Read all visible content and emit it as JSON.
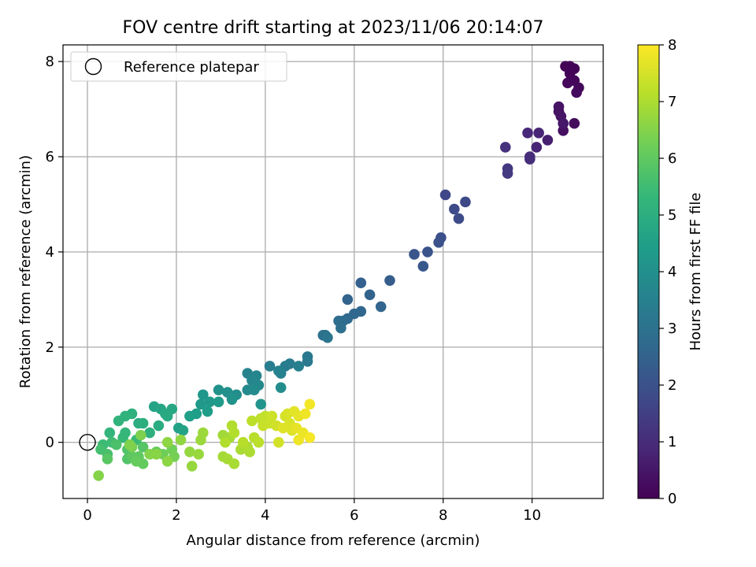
{
  "chart_data": {
    "type": "scatter",
    "title": "FOV centre drift starting at 2023/11/06 20:14:07",
    "xlabel": "Angular distance from reference (arcmin)",
    "ylabel": "Rotation from reference (arcmin)",
    "xlim": [
      -0.55,
      11.6
    ],
    "ylim": [
      -1.18,
      8.35
    ],
    "xticks": [
      0,
      2,
      4,
      6,
      8,
      10
    ],
    "yticks": [
      0,
      2,
      4,
      6,
      8
    ],
    "grid": true,
    "legend": {
      "placement": "top-left",
      "entries": [
        {
          "label": "Reference platepar",
          "marker": "open-circle"
        }
      ]
    },
    "reference_point": {
      "x": 0,
      "y": 0
    },
    "colorbar": {
      "label": "Hours from first FF file",
      "range": [
        0,
        8
      ],
      "ticks": [
        0,
        1,
        2,
        3,
        4,
        5,
        6,
        7,
        8
      ],
      "colormap": "viridis",
      "stops": [
        "#440154",
        "#482878",
        "#3e4a89",
        "#31688e",
        "#26828e",
        "#1f9e89",
        "#35b779",
        "#6ece58",
        "#b5de2b",
        "#fde725"
      ]
    },
    "points": [
      {
        "x": 10.75,
        "y": 7.9,
        "h": 0.0
      },
      {
        "x": 10.85,
        "y": 7.9,
        "h": 0.03
      },
      {
        "x": 10.95,
        "y": 7.85,
        "h": 0.06
      },
      {
        "x": 10.85,
        "y": 7.75,
        "h": 0.09
      },
      {
        "x": 10.95,
        "y": 7.6,
        "h": 0.12
      },
      {
        "x": 10.8,
        "y": 7.55,
        "h": 0.15
      },
      {
        "x": 11.05,
        "y": 7.45,
        "h": 0.18
      },
      {
        "x": 11.0,
        "y": 7.35,
        "h": 0.21
      },
      {
        "x": 10.95,
        "y": 6.7,
        "h": 0.24
      },
      {
        "x": 10.7,
        "y": 6.55,
        "h": 0.35
      },
      {
        "x": 10.6,
        "y": 6.95,
        "h": 0.4
      },
      {
        "x": 10.6,
        "y": 7.05,
        "h": 0.42
      },
      {
        "x": 10.65,
        "y": 6.85,
        "h": 0.45
      },
      {
        "x": 10.7,
        "y": 6.7,
        "h": 0.5
      },
      {
        "x": 10.35,
        "y": 6.35,
        "h": 0.7
      },
      {
        "x": 10.1,
        "y": 6.2,
        "h": 0.8
      },
      {
        "x": 10.15,
        "y": 6.5,
        "h": 0.85
      },
      {
        "x": 9.9,
        "y": 6.5,
        "h": 0.9
      },
      {
        "x": 9.95,
        "y": 6.0,
        "h": 1.0
      },
      {
        "x": 9.95,
        "y": 5.95,
        "h": 1.05
      },
      {
        "x": 9.4,
        "y": 6.2,
        "h": 1.15
      },
      {
        "x": 9.45,
        "y": 5.75,
        "h": 1.3
      },
      {
        "x": 9.45,
        "y": 5.65,
        "h": 1.35
      },
      {
        "x": 8.05,
        "y": 5.2,
        "h": 1.7
      },
      {
        "x": 8.5,
        "y": 5.05,
        "h": 1.75
      },
      {
        "x": 8.25,
        "y": 4.9,
        "h": 1.8
      },
      {
        "x": 8.35,
        "y": 4.7,
        "h": 1.85
      },
      {
        "x": 7.95,
        "y": 4.3,
        "h": 1.95
      },
      {
        "x": 7.9,
        "y": 4.2,
        "h": 2.0
      },
      {
        "x": 7.65,
        "y": 4.0,
        "h": 2.05
      },
      {
        "x": 7.35,
        "y": 3.95,
        "h": 2.1
      },
      {
        "x": 7.55,
        "y": 3.7,
        "h": 2.2
      },
      {
        "x": 6.8,
        "y": 3.4,
        "h": 2.35
      },
      {
        "x": 6.15,
        "y": 3.35,
        "h": 2.45
      },
      {
        "x": 6.35,
        "y": 3.1,
        "h": 2.5
      },
      {
        "x": 5.85,
        "y": 3.0,
        "h": 2.55
      },
      {
        "x": 6.6,
        "y": 2.85,
        "h": 2.6
      },
      {
        "x": 6.15,
        "y": 2.75,
        "h": 2.65
      },
      {
        "x": 6.0,
        "y": 2.7,
        "h": 2.7
      },
      {
        "x": 5.85,
        "y": 2.6,
        "h": 2.75
      },
      {
        "x": 5.75,
        "y": 2.55,
        "h": 2.8
      },
      {
        "x": 5.65,
        "y": 2.55,
        "h": 2.85
      },
      {
        "x": 5.7,
        "y": 2.4,
        "h": 2.9
      },
      {
        "x": 5.3,
        "y": 2.25,
        "h": 3.0
      },
      {
        "x": 5.35,
        "y": 2.25,
        "h": 3.05
      },
      {
        "x": 5.4,
        "y": 2.2,
        "h": 3.1
      },
      {
        "x": 4.95,
        "y": 1.8,
        "h": 3.2
      },
      {
        "x": 4.95,
        "y": 1.7,
        "h": 3.25
      },
      {
        "x": 4.55,
        "y": 1.65,
        "h": 3.3
      },
      {
        "x": 4.45,
        "y": 1.6,
        "h": 3.35
      },
      {
        "x": 4.1,
        "y": 1.6,
        "h": 3.4
      },
      {
        "x": 4.75,
        "y": 1.6,
        "h": 3.45
      },
      {
        "x": 4.35,
        "y": 1.45,
        "h": 3.5
      },
      {
        "x": 4.3,
        "y": 1.5,
        "h": 3.55
      },
      {
        "x": 3.6,
        "y": 1.45,
        "h": 3.6
      },
      {
        "x": 3.8,
        "y": 1.4,
        "h": 3.65
      },
      {
        "x": 3.7,
        "y": 1.3,
        "h": 3.7
      },
      {
        "x": 3.85,
        "y": 1.2,
        "h": 3.75
      },
      {
        "x": 3.6,
        "y": 1.1,
        "h": 3.8
      },
      {
        "x": 3.75,
        "y": 1.1,
        "h": 3.85
      },
      {
        "x": 4.35,
        "y": 1.15,
        "h": 3.9
      },
      {
        "x": 3.35,
        "y": 1.0,
        "h": 3.95
      },
      {
        "x": 3.15,
        "y": 1.05,
        "h": 4.0
      },
      {
        "x": 2.95,
        "y": 1.1,
        "h": 4.05
      },
      {
        "x": 3.25,
        "y": 0.9,
        "h": 4.1
      },
      {
        "x": 3.9,
        "y": 0.8,
        "h": 4.15
      },
      {
        "x": 2.6,
        "y": 1.0,
        "h": 4.2
      },
      {
        "x": 2.75,
        "y": 0.85,
        "h": 4.25
      },
      {
        "x": 2.55,
        "y": 0.8,
        "h": 4.3
      },
      {
        "x": 2.95,
        "y": 0.85,
        "h": 4.35
      },
      {
        "x": 2.7,
        "y": 0.65,
        "h": 4.4
      },
      {
        "x": 2.45,
        "y": 0.6,
        "h": 4.45
      },
      {
        "x": 2.3,
        "y": 0.55,
        "h": 4.5
      },
      {
        "x": 2.05,
        "y": 0.3,
        "h": 4.55
      },
      {
        "x": 2.15,
        "y": 0.25,
        "h": 4.6
      },
      {
        "x": 1.5,
        "y": 0.75,
        "h": 4.65
      },
      {
        "x": 1.65,
        "y": 0.7,
        "h": 4.7
      },
      {
        "x": 1.9,
        "y": 0.7,
        "h": 4.75
      },
      {
        "x": 1.75,
        "y": 0.6,
        "h": 4.8
      },
      {
        "x": 1.8,
        "y": 0.55,
        "h": 4.85
      },
      {
        "x": 1.6,
        "y": 0.35,
        "h": 4.9
      },
      {
        "x": 1.15,
        "y": 0.4,
        "h": 4.95
      },
      {
        "x": 1.25,
        "y": 0.4,
        "h": 5.0
      },
      {
        "x": 1.4,
        "y": 0.2,
        "h": 5.05
      },
      {
        "x": 1.0,
        "y": 0.6,
        "h": 5.1
      },
      {
        "x": 0.85,
        "y": 0.55,
        "h": 5.15
      },
      {
        "x": 0.7,
        "y": 0.45,
        "h": 5.2
      },
      {
        "x": 0.5,
        "y": 0.2,
        "h": 5.25
      },
      {
        "x": 0.85,
        "y": 0.2,
        "h": 5.3
      },
      {
        "x": 0.8,
        "y": 0.1,
        "h": 5.35
      },
      {
        "x": 1.1,
        "y": 0.05,
        "h": 5.4
      },
      {
        "x": 0.35,
        "y": -0.05,
        "h": 5.45
      },
      {
        "x": 0.55,
        "y": 0.0,
        "h": 5.5
      },
      {
        "x": 0.3,
        "y": -0.15,
        "h": 5.6
      },
      {
        "x": 0.45,
        "y": -0.25,
        "h": 5.65
      },
      {
        "x": 0.65,
        "y": -0.05,
        "h": 5.7
      },
      {
        "x": 0.9,
        "y": -0.15,
        "h": 5.75
      },
      {
        "x": 0.9,
        "y": -0.35,
        "h": 5.8
      },
      {
        "x": 1.25,
        "y": -0.1,
        "h": 5.85
      },
      {
        "x": 0.45,
        "y": -0.35,
        "h": 5.9
      },
      {
        "x": 1.0,
        "y": -0.3,
        "h": 5.95
      },
      {
        "x": 1.15,
        "y": -0.3,
        "h": 6.0
      },
      {
        "x": 1.25,
        "y": -0.45,
        "h": 6.05
      },
      {
        "x": 1.1,
        "y": -0.4,
        "h": 6.1
      },
      {
        "x": 1.55,
        "y": -0.2,
        "h": 6.15
      },
      {
        "x": 1.7,
        "y": -0.25,
        "h": 6.2
      },
      {
        "x": 1.9,
        "y": -0.15,
        "h": 6.25
      },
      {
        "x": 1.95,
        "y": -0.3,
        "h": 6.3
      },
      {
        "x": 1.0,
        "y": -0.1,
        "h": 6.35
      },
      {
        "x": 1.2,
        "y": 0.15,
        "h": 6.4
      },
      {
        "x": 0.95,
        "y": -0.05,
        "h": 6.45
      },
      {
        "x": 1.4,
        "y": -0.25,
        "h": 6.5
      },
      {
        "x": 1.55,
        "y": -0.25,
        "h": 6.55
      },
      {
        "x": 1.8,
        "y": -0.4,
        "h": 6.6
      },
      {
        "x": 1.8,
        "y": 0.0,
        "h": 6.62
      },
      {
        "x": 2.1,
        "y": 0.05,
        "h": 6.65
      },
      {
        "x": 2.3,
        "y": -0.2,
        "h": 6.7
      },
      {
        "x": 2.35,
        "y": -0.5,
        "h": 6.72
      },
      {
        "x": 2.5,
        "y": -0.25,
        "h": 6.75
      },
      {
        "x": 2.55,
        "y": 0.05,
        "h": 6.77
      },
      {
        "x": 2.6,
        "y": 0.2,
        "h": 6.8
      },
      {
        "x": 0.25,
        "y": -0.7,
        "h": 6.5
      },
      {
        "x": 3.05,
        "y": 0.15,
        "h": 6.85
      },
      {
        "x": 3.2,
        "y": 0.1,
        "h": 6.88
      },
      {
        "x": 3.05,
        "y": -0.3,
        "h": 6.9
      },
      {
        "x": 3.15,
        "y": -0.35,
        "h": 6.92
      },
      {
        "x": 3.3,
        "y": -0.45,
        "h": 6.95
      },
      {
        "x": 3.45,
        "y": -0.15,
        "h": 6.97
      },
      {
        "x": 3.65,
        "y": -0.2,
        "h": 7.0
      },
      {
        "x": 3.6,
        "y": -0.1,
        "h": 7.02
      },
      {
        "x": 3.1,
        "y": 0.0,
        "h": 7.05
      },
      {
        "x": 3.25,
        "y": 0.35,
        "h": 7.07
      },
      {
        "x": 3.3,
        "y": 0.2,
        "h": 7.1
      },
      {
        "x": 3.5,
        "y": 0.0,
        "h": 7.12
      },
      {
        "x": 3.75,
        "y": 0.1,
        "h": 7.15
      },
      {
        "x": 3.85,
        "y": 0.0,
        "h": 7.18
      },
      {
        "x": 3.7,
        "y": 0.45,
        "h": 7.2
      },
      {
        "x": 3.9,
        "y": 0.5,
        "h": 7.25
      },
      {
        "x": 4.0,
        "y": 0.55,
        "h": 7.28
      },
      {
        "x": 4.05,
        "y": 0.45,
        "h": 7.3
      },
      {
        "x": 3.95,
        "y": 0.35,
        "h": 7.33
      },
      {
        "x": 4.1,
        "y": 0.4,
        "h": 7.36
      },
      {
        "x": 4.15,
        "y": 0.55,
        "h": 7.4
      },
      {
        "x": 4.25,
        "y": 0.35,
        "h": 7.43
      },
      {
        "x": 4.3,
        "y": 0.0,
        "h": 7.46
      },
      {
        "x": 4.45,
        "y": 0.55,
        "h": 7.5
      },
      {
        "x": 4.5,
        "y": 0.6,
        "h": 7.53
      },
      {
        "x": 4.55,
        "y": 0.4,
        "h": 7.56
      },
      {
        "x": 4.6,
        "y": 0.25,
        "h": 7.6
      },
      {
        "x": 4.4,
        "y": 0.3,
        "h": 7.63
      },
      {
        "x": 4.65,
        "y": 0.65,
        "h": 7.66
      },
      {
        "x": 4.75,
        "y": 0.55,
        "h": 7.7
      },
      {
        "x": 4.7,
        "y": 0.3,
        "h": 7.73
      },
      {
        "x": 4.85,
        "y": 0.2,
        "h": 7.76
      },
      {
        "x": 4.75,
        "y": 0.05,
        "h": 7.8
      },
      {
        "x": 4.9,
        "y": 0.6,
        "h": 7.83
      },
      {
        "x": 5.0,
        "y": 0.8,
        "h": 7.86
      },
      {
        "x": 5.0,
        "y": 0.1,
        "h": 7.9
      }
    ]
  }
}
